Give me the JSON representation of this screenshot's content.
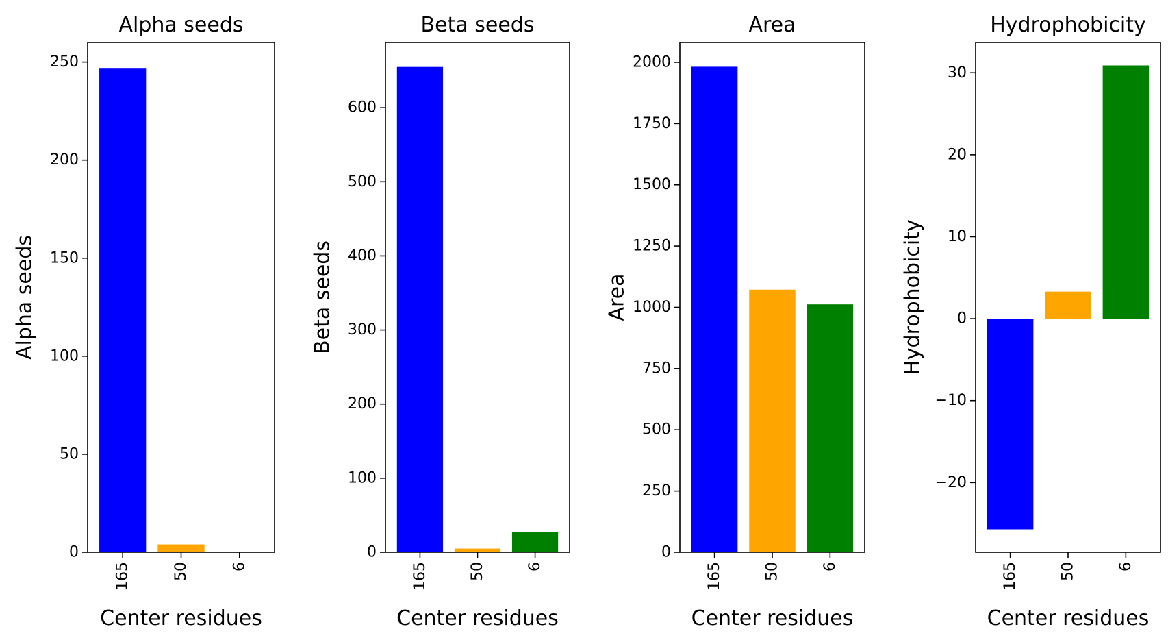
{
  "chart_data": [
    {
      "type": "bar",
      "title": "Alpha seeds",
      "xlabel": "Center residues",
      "ylabel": "Alpha seeds",
      "categories": [
        "165",
        "50",
        "6"
      ],
      "values": [
        247,
        4,
        0
      ],
      "colors": [
        "#0000ff",
        "#ffa500",
        "#008000"
      ],
      "ylim": [
        0,
        260
      ],
      "yticks": [
        0,
        50,
        100,
        150,
        200,
        250
      ],
      "grid": false
    },
    {
      "type": "bar",
      "title": "Beta seeds",
      "xlabel": "Center residues",
      "ylabel": "Beta seeds",
      "categories": [
        "165",
        "50",
        "6"
      ],
      "values": [
        655,
        5,
        27
      ],
      "colors": [
        "#0000ff",
        "#ffa500",
        "#008000"
      ],
      "ylim": [
        0,
        688
      ],
      "yticks": [
        0,
        100,
        200,
        300,
        400,
        500,
        600
      ],
      "grid": false
    },
    {
      "type": "bar",
      "title": "Area",
      "xlabel": "Center residues",
      "ylabel": "Area",
      "categories": [
        "165",
        "50",
        "6"
      ],
      "values": [
        1982,
        1072,
        1012
      ],
      "colors": [
        "#0000ff",
        "#ffa500",
        "#008000"
      ],
      "ylim": [
        0,
        2081
      ],
      "yticks": [
        0,
        250,
        500,
        750,
        1000,
        1250,
        1500,
        1750,
        2000
      ],
      "grid": false
    },
    {
      "type": "bar",
      "title": "Hydrophobicity",
      "xlabel": "Center residues",
      "ylabel": "Hydrophobicity",
      "categories": [
        "165",
        "50",
        "6"
      ],
      "values": [
        -25.7,
        3.3,
        30.9
      ],
      "colors": [
        "#0000ff",
        "#ffa500",
        "#008000"
      ],
      "ylim": [
        -28.5,
        33.7
      ],
      "yticks": [
        -20,
        -10,
        0,
        10,
        20,
        30
      ],
      "grid": false
    }
  ]
}
